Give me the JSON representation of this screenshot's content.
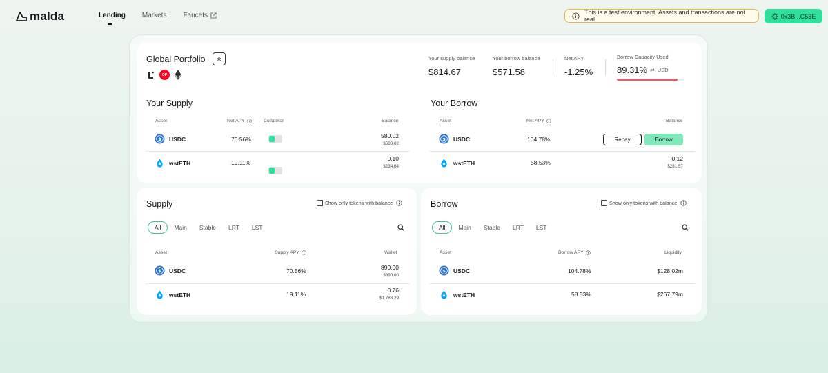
{
  "app": {
    "logo_text": "malda"
  },
  "nav": {
    "items": [
      {
        "label": "Lending",
        "active": true
      },
      {
        "label": "Markets",
        "active": false
      },
      {
        "label": "Faucets",
        "active": false
      }
    ]
  },
  "banner": {
    "text": "This is a test environment. Assets and transactions are not real."
  },
  "wallet": {
    "address": "0x3B...C53E"
  },
  "portfolio": {
    "title": "Global Portfolio",
    "chain_op_label": "OP",
    "stats": {
      "supply_label": "Your supply balance",
      "supply_value": "$814.67",
      "borrow_label": "Your borrow balance",
      "borrow_value": "$571.58",
      "apy_label": "Net APY",
      "apy_value": "-1.25%",
      "capacity_label": "Borrow Capacity Used",
      "capacity_value": "89.31%",
      "capacity_unit": "USD",
      "capacity_fraction": 0.8931,
      "capacity_color": "#e35f67"
    }
  },
  "your_supply": {
    "title": "Your Supply",
    "headers": {
      "asset": "Asset",
      "apy": "Net APY",
      "collateral": "Collateral",
      "balance": "Balance"
    },
    "rows": [
      {
        "asset": "USDC",
        "apy": "70.56%",
        "balance": "580.02",
        "balance_usd": "$580.02"
      },
      {
        "asset": "wstETH",
        "apy": "19.11%",
        "balance": "0.10",
        "balance_usd": "$234.64"
      }
    ]
  },
  "your_borrow": {
    "title": "Your Borrow",
    "headers": {
      "asset": "Asset",
      "apy": "Net APY",
      "balance": "Balance"
    },
    "rows": [
      {
        "asset": "USDC",
        "apy": "104.78%",
        "repay": "Repay",
        "borrow": "Borrow"
      },
      {
        "asset": "wstETH",
        "apy": "58.53%",
        "balance": "0.12",
        "balance_usd": "$281.57"
      }
    ]
  },
  "supply": {
    "title": "Supply",
    "filter_label": "Show only tokens with balance",
    "tabs": [
      "All",
      "Main",
      "Stable",
      "LRT",
      "LST"
    ],
    "headers": {
      "asset": "Asset",
      "apy": "Supply APY",
      "wallet": "Wallet"
    },
    "rows": [
      {
        "asset": "USDC",
        "apy": "70.56%",
        "wallet": "890.00",
        "wallet_usd": "$890.00"
      },
      {
        "asset": "wstETH",
        "apy": "19.11%",
        "wallet": "0.76",
        "wallet_usd": "$1,783.29"
      }
    ]
  },
  "borrow": {
    "title": "Borrow",
    "filter_label": "Show only tokens with balance",
    "tabs": [
      "All",
      "Main",
      "Stable",
      "LRT",
      "LST"
    ],
    "headers": {
      "asset": "Asset",
      "apy": "Borrow APY",
      "liquidity": "Liquidity"
    },
    "rows": [
      {
        "asset": "USDC",
        "apy": "104.78%",
        "liquidity": "$128.02m"
      },
      {
        "asset": "wstETH",
        "apy": "58.53%",
        "liquidity": "$267.79m"
      }
    ]
  },
  "colors": {
    "accent": "#2fe09a",
    "usdc": "#2775ca",
    "wsteth": "#00a3ff",
    "op": "#ff0420"
  }
}
